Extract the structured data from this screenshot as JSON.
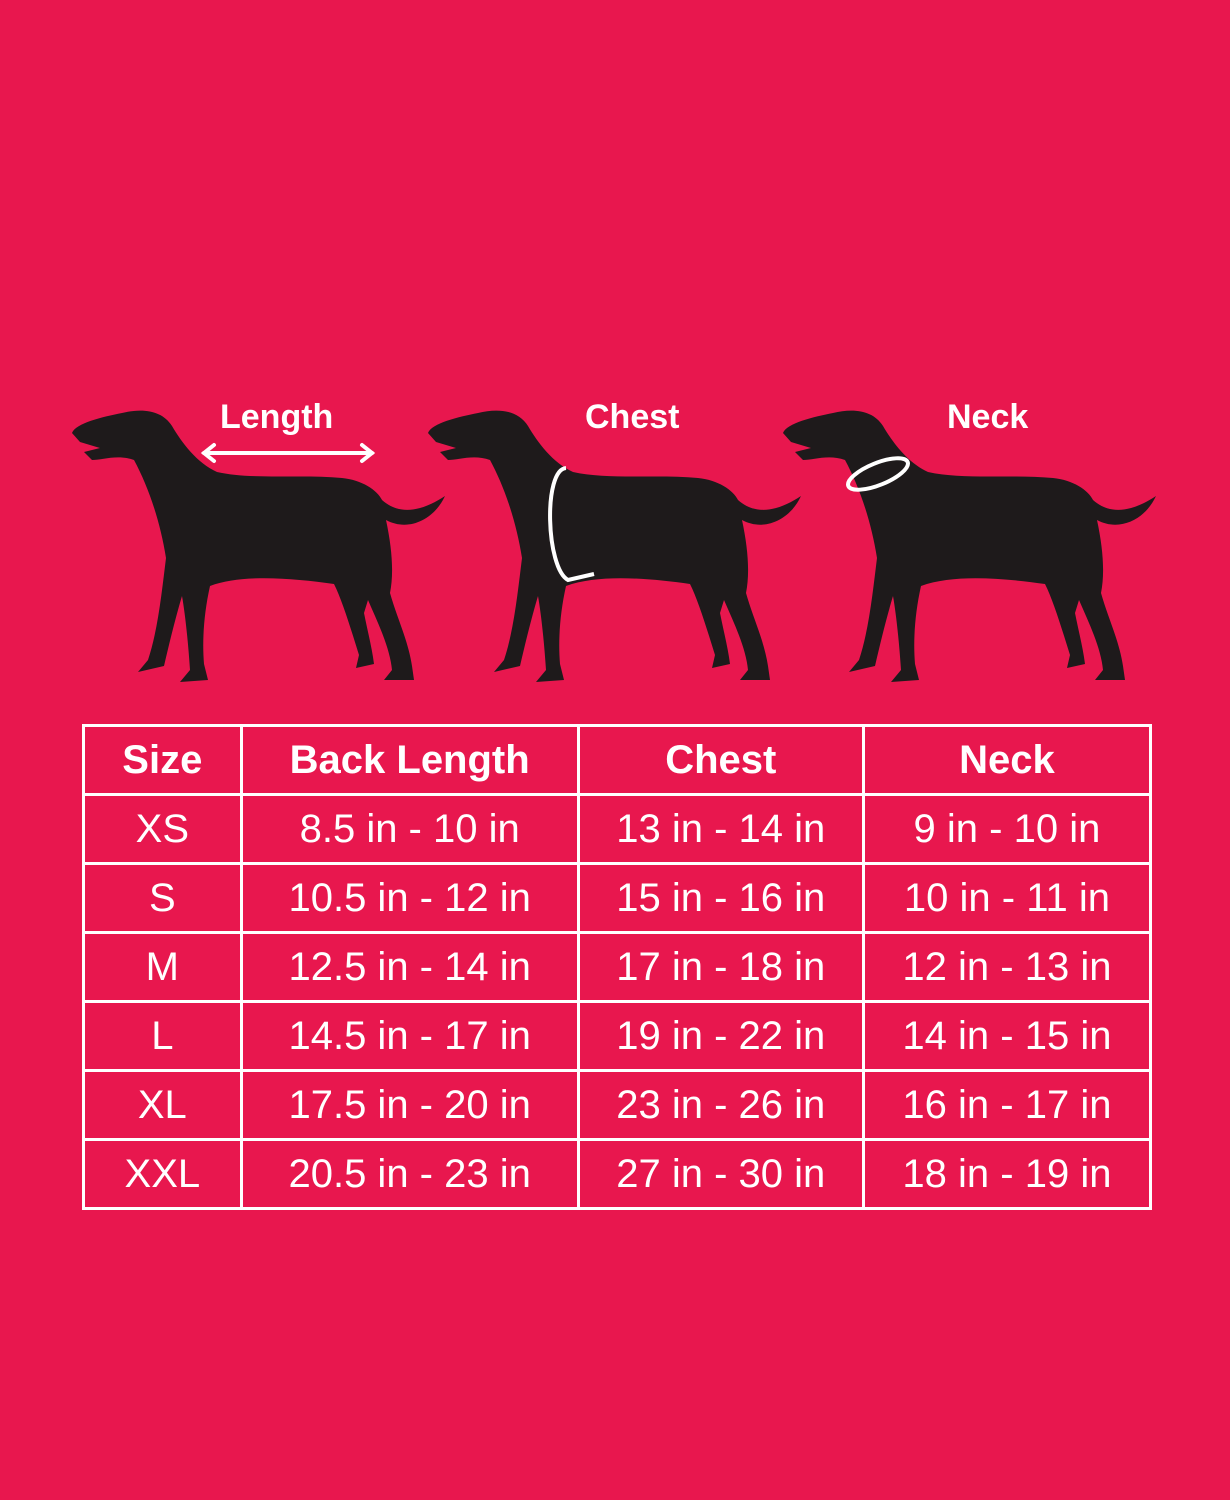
{
  "colors": {
    "background": "#E8174E",
    "silhouette": "#1e1a1b",
    "lines": "#ffffff"
  },
  "diagrams": [
    {
      "label": "Length",
      "indicator": "double-arrow"
    },
    {
      "label": "Chest",
      "indicator": "chest-ring"
    },
    {
      "label": "Neck",
      "indicator": "neck-ring"
    }
  ],
  "table": {
    "headers": [
      "Size",
      "Back Length",
      "Chest",
      "Neck"
    ],
    "rows": [
      [
        "XS",
        "8.5 in - 10 in",
        "13 in - 14 in",
        "9 in - 10 in"
      ],
      [
        "S",
        "10.5 in - 12 in",
        "15 in - 16 in",
        "10 in - 11 in"
      ],
      [
        "M",
        "12.5 in - 14 in",
        "17 in - 18 in",
        "12 in - 13 in"
      ],
      [
        "L",
        "14.5 in - 17 in",
        "19 in - 22 in",
        "14 in - 15 in"
      ],
      [
        "XL",
        "17.5 in - 20 in",
        "23 in - 26 in",
        "16 in - 17 in"
      ],
      [
        "XXL",
        "20.5 in - 23 in",
        "27 in - 30 in",
        "18 in - 19 in"
      ]
    ]
  }
}
